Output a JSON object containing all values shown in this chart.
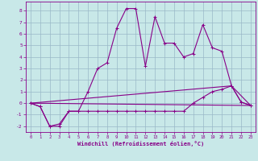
{
  "background_color": "#c8e8e8",
  "grid_color": "#99b8c8",
  "line_color": "#880088",
  "xlabel": "Windchill (Refroidissement éolien,°C)",
  "xlim": [
    -0.5,
    23.5
  ],
  "ylim": [
    -2.5,
    8.8
  ],
  "xticks": [
    0,
    1,
    2,
    3,
    4,
    5,
    6,
    7,
    8,
    9,
    10,
    11,
    12,
    13,
    14,
    15,
    16,
    17,
    18,
    19,
    20,
    21,
    22,
    23
  ],
  "yticks": [
    -2,
    -1,
    0,
    1,
    2,
    3,
    4,
    5,
    6,
    7,
    8
  ],
  "line1_x": [
    0,
    1,
    2,
    3,
    4,
    5,
    6,
    7,
    8,
    9,
    10,
    11,
    12,
    13,
    14,
    15,
    16,
    17,
    18,
    19,
    20,
    21,
    22,
    23
  ],
  "line1_y": [
    0,
    -0.3,
    -2,
    -2,
    -0.7,
    -0.7,
    1.0,
    3.0,
    3.5,
    6.5,
    8.2,
    8.2,
    3.2,
    7.5,
    5.2,
    5.2,
    4.0,
    4.3,
    6.8,
    4.8,
    4.5,
    1.5,
    0.1,
    -0.2
  ],
  "line2_x": [
    0,
    1,
    2,
    3,
    4,
    5,
    6,
    7,
    8,
    9,
    10,
    11,
    12,
    13,
    14,
    15,
    16,
    17,
    18,
    19,
    20,
    21,
    22,
    23
  ],
  "line2_y": [
    0,
    -0.3,
    -2,
    -1.8,
    -0.7,
    -0.7,
    -0.7,
    -0.7,
    -0.7,
    -0.7,
    -0.7,
    -0.7,
    -0.7,
    -0.7,
    -0.7,
    -0.7,
    -0.7,
    0.0,
    0.5,
    1.0,
    1.2,
    1.5,
    0.1,
    -0.2
  ],
  "line3_x": [
    0,
    21,
    23
  ],
  "line3_y": [
    0,
    1.5,
    -0.2
  ],
  "line4_x": [
    0,
    23
  ],
  "line4_y": [
    0,
    -0.2
  ]
}
